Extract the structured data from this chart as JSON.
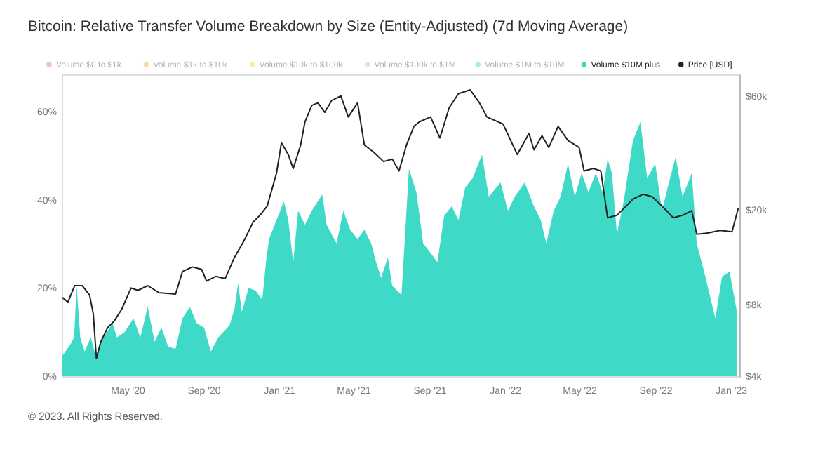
{
  "chart_data": {
    "type": "area",
    "title": "Bitcoin: Relative Transfer Volume Breakdown by Size (Entity-Adjusted) (7d Moving Average)",
    "legend": "top",
    "log": "y2",
    "xlim": [
      "2020-01-16",
      "2023-01-15"
    ],
    "xticks": [
      {
        "value": "2020-05-01",
        "label": "May '20"
      },
      {
        "value": "2020-09-01",
        "label": "Sep '20"
      },
      {
        "value": "2021-01-01",
        "label": "Jan '21"
      },
      {
        "value": "2021-05-01",
        "label": "May '21"
      },
      {
        "value": "2021-09-01",
        "label": "Sep '21"
      },
      {
        "value": "2022-01-01",
        "label": "Jan '22"
      },
      {
        "value": "2022-05-01",
        "label": "May '22"
      },
      {
        "value": "2022-09-01",
        "label": "Sep '22"
      },
      {
        "value": "2023-01-01",
        "label": "Jan '23"
      }
    ],
    "ylim": [
      0,
      68.4
    ],
    "yticks": [
      {
        "value": 0,
        "label": "0%"
      },
      {
        "value": 20,
        "label": "20%"
      },
      {
        "value": 40,
        "label": "40%"
      },
      {
        "value": 60,
        "label": "60%"
      }
    ],
    "y2lim": [
      4000,
      74000
    ],
    "y2ticks": [
      {
        "value": 4000,
        "label": "$4k"
      },
      {
        "value": 8000,
        "label": "$8k"
      },
      {
        "value": 20000,
        "label": "$20k"
      },
      {
        "value": 60000,
        "label": "$60k"
      }
    ],
    "series": [
      {
        "name": "Volume $0 to $1k",
        "color": "#e5484d"
      },
      {
        "name": "Volume $1k to $10k",
        "color": "#f7931a"
      },
      {
        "name": "Volume $10k to $100k",
        "color": "#f5c400"
      },
      {
        "name": "Volume $100k to $1M",
        "color": "#8fe04a"
      },
      {
        "name": "Volume $1M to $10M",
        "color": "#1fcf8f"
      },
      {
        "name": "Volume $10M plus",
        "color": "#3fd9c8",
        "x": [
          "2020-01-17",
          "2020-01-30",
          "2020-02-05",
          "2020-02-09",
          "2020-02-15",
          "2020-02-22",
          "2020-03-03",
          "2020-03-11",
          "2020-03-19",
          "2020-04-07",
          "2020-04-14",
          "2020-04-26",
          "2020-05-11",
          "2020-05-22",
          "2020-06-03",
          "2020-06-14",
          "2020-06-25",
          "2020-07-06",
          "2020-07-18",
          "2020-07-29",
          "2020-08-10",
          "2020-08-21",
          "2020-09-02",
          "2020-09-13",
          "2020-09-25",
          "2020-10-13",
          "2020-10-21",
          "2020-10-27",
          "2020-11-02",
          "2020-11-13",
          "2020-11-24",
          "2020-12-05",
          "2020-12-11",
          "2020-12-16",
          "2020-12-28",
          "2021-01-09",
          "2021-01-16",
          "2021-01-24",
          "2021-02-01",
          "2021-02-12",
          "2021-02-23",
          "2021-03-12",
          "2021-03-19",
          "2021-04-04",
          "2021-04-15",
          "2021-04-26",
          "2021-05-08",
          "2021-05-19",
          "2021-05-30",
          "2021-06-07",
          "2021-06-15",
          "2021-06-26",
          "2021-07-03",
          "2021-07-18",
          "2021-07-30",
          "2021-08-11",
          "2021-08-22",
          "2021-09-03",
          "2021-09-14",
          "2021-09-25",
          "2021-10-07",
          "2021-10-18",
          "2021-10-29",
          "2021-11-10",
          "2021-11-25",
          "2021-12-06",
          "2021-12-25",
          "2022-01-06",
          "2022-01-17",
          "2022-02-02",
          "2022-02-17",
          "2022-02-28",
          "2022-03-09",
          "2022-03-21",
          "2022-04-01",
          "2022-04-13",
          "2022-04-24",
          "2022-05-05",
          "2022-05-16",
          "2022-05-28",
          "2022-06-08",
          "2022-06-16",
          "2022-06-23",
          "2022-07-01",
          "2022-07-12",
          "2022-07-27",
          "2022-08-08",
          "2022-08-19",
          "2022-09-01",
          "2022-09-12",
          "2022-09-23",
          "2022-10-04",
          "2022-10-15",
          "2022-10-30",
          "2022-11-07",
          "2022-11-19",
          "2022-12-07",
          "2022-12-18",
          "2022-12-30",
          "2023-01-11"
        ],
        "values": [
          4.6,
          7.2,
          8.8,
          20.5,
          8.8,
          5.6,
          8.8,
          4.6,
          7.8,
          12.0,
          8.8,
          9.9,
          13.1,
          8.8,
          15.7,
          7.8,
          11.0,
          6.7,
          6.2,
          13.1,
          15.7,
          12.0,
          11.0,
          5.6,
          8.8,
          11.5,
          15.2,
          21.0,
          14.6,
          20.0,
          19.4,
          17.3,
          25.8,
          31.1,
          35.4,
          39.6,
          35.4,
          25.8,
          37.5,
          34.3,
          37.5,
          41.2,
          34.3,
          30.1,
          37.5,
          33.2,
          31.1,
          33.2,
          30.1,
          25.8,
          22.3,
          26.9,
          20.5,
          18.4,
          47.0,
          41.7,
          30.1,
          27.9,
          25.8,
          36.4,
          38.5,
          35.4,
          42.8,
          44.9,
          50.2,
          40.7,
          43.9,
          37.5,
          40.7,
          43.9,
          38.5,
          35.4,
          30.1,
          37.5,
          40.7,
          48.1,
          40.7,
          46.0,
          41.7,
          46.0,
          41.7,
          49.2,
          46.0,
          32.2,
          39.6,
          53.4,
          57.6,
          44.9,
          48.1,
          37.5,
          43.9,
          49.7,
          40.7,
          46.0,
          30.1,
          23.7,
          13.1,
          22.6,
          23.7,
          14.6
        ]
      },
      {
        "name": "Price [USD]",
        "color": "#222222",
        "type": "line",
        "axis": "y2",
        "x": [
          "2020-01-17",
          "2020-01-26",
          "2020-02-06",
          "2020-02-18",
          "2020-03-01",
          "2020-03-07",
          "2020-03-12",
          "2020-03-19",
          "2020-03-30",
          "2020-04-10",
          "2020-04-22",
          "2020-05-07",
          "2020-05-18",
          "2020-06-03",
          "2020-06-21",
          "2020-07-18",
          "2020-07-29",
          "2020-08-14",
          "2020-08-29",
          "2020-09-06",
          "2020-09-21",
          "2020-10-06",
          "2020-10-21",
          "2020-11-05",
          "2020-11-20",
          "2020-12-01",
          "2020-12-13",
          "2020-12-28",
          "2021-01-05",
          "2021-01-16",
          "2021-01-24",
          "2021-02-05",
          "2021-02-12",
          "2021-02-23",
          "2021-03-05",
          "2021-03-16",
          "2021-03-27",
          "2021-04-11",
          "2021-04-23",
          "2021-05-08",
          "2021-05-19",
          "2021-06-03",
          "2021-06-19",
          "2021-07-03",
          "2021-07-14",
          "2021-07-26",
          "2021-08-07",
          "2021-08-16",
          "2021-09-03",
          "2021-09-18",
          "2021-10-03",
          "2021-10-18",
          "2021-11-06",
          "2021-11-21",
          "2021-12-03",
          "2021-12-29",
          "2022-01-21",
          "2022-02-09",
          "2022-02-17",
          "2022-03-02",
          "2022-03-13",
          "2022-03-28",
          "2022-04-13",
          "2022-05-01",
          "2022-05-09",
          "2022-05-24",
          "2022-06-05",
          "2022-06-16",
          "2022-07-01",
          "2022-07-16",
          "2022-07-27",
          "2022-08-12",
          "2022-08-27",
          "2022-09-12",
          "2022-09-30",
          "2022-10-15",
          "2022-10-30",
          "2022-11-07",
          "2022-11-23",
          "2022-12-15",
          "2023-01-03",
          "2023-01-13"
        ],
        "values": [
          8560,
          8190,
          9600,
          9600,
          8760,
          7310,
          4750,
          5570,
          6390,
          6830,
          7650,
          9380,
          9170,
          9600,
          8970,
          8850,
          11000,
          11500,
          11240,
          10040,
          10500,
          10270,
          12600,
          14740,
          17700,
          18940,
          20720,
          28450,
          38200,
          34100,
          29780,
          37370,
          46800,
          54870,
          56170,
          51280,
          57400,
          60100,
          49040,
          56170,
          37370,
          34900,
          31870,
          32600,
          29100,
          37370,
          44760,
          46800,
          49040,
          40000,
          53630,
          61430,
          63730,
          56170,
          49040,
          45810,
          34100,
          41820,
          35670,
          40870,
          36500,
          44760,
          39070,
          36500,
          29100,
          29780,
          29100,
          18500,
          18940,
          20720,
          22170,
          23220,
          22690,
          20720,
          18500,
          18940,
          19810,
          15790,
          15930,
          16370,
          16150,
          20260
        ]
      }
    ],
    "annotations": [
      "© 2023. All Rights Reserved."
    ]
  }
}
